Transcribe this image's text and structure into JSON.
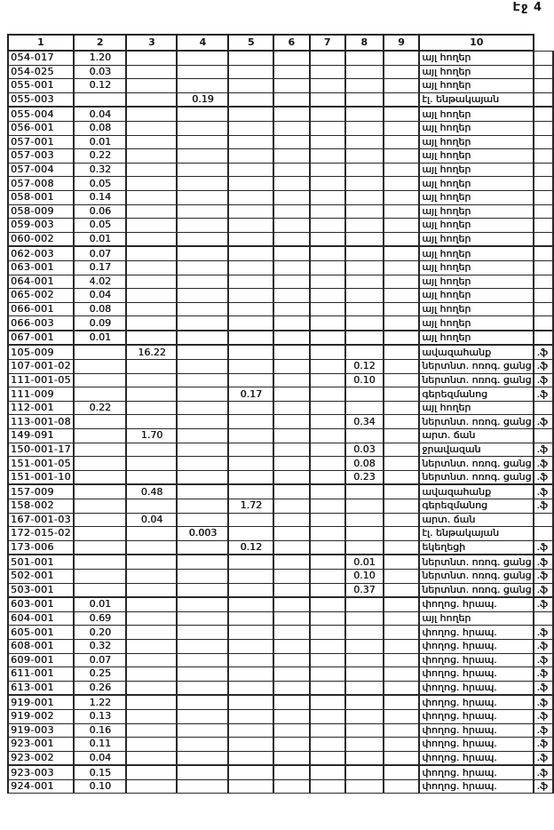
{
  "page": {
    "label": "Էջ 4"
  },
  "table": {
    "headers": [
      "1",
      "2",
      "3",
      "4",
      "5",
      "6",
      "7",
      "8",
      "9",
      "10"
    ],
    "edge_mark": ".ֆ",
    "rows": [
      {
        "code": "054-017",
        "values": {
          "2": "1.20"
        },
        "category": "այլ հողեր",
        "mark": false,
        "thick": false
      },
      {
        "code": "054-025",
        "values": {
          "2": "0.03"
        },
        "category": "այլ հողեր",
        "mark": false,
        "thick": false
      },
      {
        "code": "055-001",
        "values": {
          "2": "0.12"
        },
        "category": "այլ հողեր",
        "mark": false,
        "thick": false
      },
      {
        "code": "055-003",
        "values": {
          "4": "0.19"
        },
        "category": "էլ. ենթակայան",
        "mark": false,
        "thick": false
      },
      {
        "code": "055-004",
        "values": {
          "2": "0.04"
        },
        "category": "այլ հողեր",
        "mark": false,
        "thick": true
      },
      {
        "code": "056-001",
        "values": {
          "2": "0.08"
        },
        "category": "այլ հողեր",
        "mark": false,
        "thick": false
      },
      {
        "code": "057-001",
        "values": {
          "2": "0.01"
        },
        "category": "այլ հողեր",
        "mark": false,
        "thick": false
      },
      {
        "code": "057-003",
        "values": {
          "2": "0.22"
        },
        "category": "այլ հողեր",
        "mark": false,
        "thick": false
      },
      {
        "code": "057-004",
        "values": {
          "2": "0.32"
        },
        "category": "այլ հողեր",
        "mark": false,
        "thick": false
      },
      {
        "code": "057-008",
        "values": {
          "2": "0.05"
        },
        "category": "այլ հողեր",
        "mark": false,
        "thick": false
      },
      {
        "code": "058-001",
        "values": {
          "2": "0.14"
        },
        "category": "այլ հողեր",
        "mark": false,
        "thick": false
      },
      {
        "code": "058-009",
        "values": {
          "2": "0.06"
        },
        "category": "այլ հողեր",
        "mark": false,
        "thick": false
      },
      {
        "code": "059-003",
        "values": {
          "2": "0.05"
        },
        "category": "այլ հողեր",
        "mark": false,
        "thick": false
      },
      {
        "code": "060-002",
        "values": {
          "2": "0.01"
        },
        "category": "այլ հողեր",
        "mark": false,
        "thick": false
      },
      {
        "code": "062-003",
        "values": {
          "2": "0.07"
        },
        "category": "այլ հողեր",
        "mark": false,
        "thick": true
      },
      {
        "code": "063-001",
        "values": {
          "2": "0.17"
        },
        "category": "այլ հողեր",
        "mark": false,
        "thick": false
      },
      {
        "code": "064-001",
        "values": {
          "2": "4.02"
        },
        "category": "այլ հողեր",
        "mark": false,
        "thick": false
      },
      {
        "code": "065-002",
        "values": {
          "2": "0.04"
        },
        "category": "այլ հողեր",
        "mark": false,
        "thick": false
      },
      {
        "code": "066-001",
        "values": {
          "2": "0.08"
        },
        "category": "այլ հողեր",
        "mark": false,
        "thick": false
      },
      {
        "code": "066-003",
        "values": {
          "2": "0.09"
        },
        "category": "այլ հողեր",
        "mark": false,
        "thick": false
      },
      {
        "code": "067-001",
        "values": {
          "2": "0.01"
        },
        "category": "այլ հողեր",
        "mark": false,
        "thick": true
      },
      {
        "code": "105-009",
        "values": {
          "3": "16.22"
        },
        "category": "ավազահանք",
        "mark": true,
        "thick": true
      },
      {
        "code": "107-001-02",
        "values": {
          "8": "0.12"
        },
        "category": "ներտնտ. ոռոգ. ցանց",
        "mark": true,
        "thick": false
      },
      {
        "code": "111-001-05",
        "values": {
          "8": "0.10"
        },
        "category": "ներտնտ. ոռոգ. ցանց",
        "mark": true,
        "thick": false
      },
      {
        "code": "111-009",
        "values": {
          "5": "0.17"
        },
        "category": "գերեզմանոց",
        "mark": true,
        "thick": false
      },
      {
        "code": "112-001",
        "values": {
          "2": "0.22"
        },
        "category": "այլ հողեր",
        "mark": false,
        "thick": false
      },
      {
        "code": "113-001-08",
        "values": {
          "8": "0.34"
        },
        "category": "ներտնտ. ոռոգ. ցանց",
        "mark": true,
        "thick": false
      },
      {
        "code": "149-091",
        "values": {
          "3": "1.70"
        },
        "category": "արտ. ճան",
        "mark": false,
        "thick": false
      },
      {
        "code": "150-001-17",
        "values": {
          "8": "0.03"
        },
        "category": "ջրավազան",
        "mark": true,
        "thick": false
      },
      {
        "code": "151-001-05",
        "values": {
          "8": "0.08"
        },
        "category": "ներտնտ. ոռոգ. ցանց",
        "mark": true,
        "thick": false
      },
      {
        "code": "151-001-10",
        "values": {
          "8": "0.23"
        },
        "category": "ներտնտ. ոռոգ. ցանց",
        "mark": true,
        "thick": false
      },
      {
        "code": "157-009",
        "values": {
          "3": "0.48"
        },
        "category": "ավազահանք",
        "mark": true,
        "thick": true
      },
      {
        "code": "158-002",
        "values": {
          "5": "1.72"
        },
        "category": "գերեզմանոց",
        "mark": true,
        "thick": false
      },
      {
        "code": "167-001-03",
        "values": {
          "3": "0.04"
        },
        "category": "արտ. ճան",
        "mark": false,
        "thick": false
      },
      {
        "code": "172-015-02",
        "values": {
          "4": "0.003"
        },
        "category": "էլ. ենթակայան",
        "mark": false,
        "thick": false
      },
      {
        "code": "173-006",
        "values": {
          "5": "0.12"
        },
        "category": "եկեղեցի",
        "mark": true,
        "thick": false
      },
      {
        "code": "501-001",
        "values": {
          "8": "0.01"
        },
        "category": "ներտնտ. ոռոգ. ցանց",
        "mark": true,
        "thick": true
      },
      {
        "code": "502-001",
        "values": {
          "8": "0.10"
        },
        "category": "ներտնտ. ոռոգ. ցանց",
        "mark": true,
        "thick": false
      },
      {
        "code": "503-001",
        "values": {
          "8": "0.37"
        },
        "category": "ներտնտ. ոռոգ. ցանց",
        "mark": true,
        "thick": false
      },
      {
        "code": "603-001",
        "values": {
          "2": "0.01"
        },
        "category": "փողոց. հրապ.",
        "mark": true,
        "thick": true
      },
      {
        "code": "604-001",
        "values": {
          "2": "0.69"
        },
        "category": "այլ հողեր",
        "mark": false,
        "thick": false
      },
      {
        "code": "605-001",
        "values": {
          "2": "0.20"
        },
        "category": "փողոց. հրապ.",
        "mark": true,
        "thick": false
      },
      {
        "code": "608-001",
        "values": {
          "2": "0.32"
        },
        "category": "փողոց. հրապ.",
        "mark": true,
        "thick": false
      },
      {
        "code": "609-001",
        "values": {
          "2": "0.07"
        },
        "category": "փողոց. հրապ.",
        "mark": true,
        "thick": false
      },
      {
        "code": "611-001",
        "values": {
          "2": "0.25"
        },
        "category": "փողոց. հրապ.",
        "mark": true,
        "thick": false
      },
      {
        "code": "613-001",
        "values": {
          "2": "0.26"
        },
        "category": "փողոց. հրապ.",
        "mark": true,
        "thick": false
      },
      {
        "code": "919-001",
        "values": {
          "2": "1.22"
        },
        "category": "փողոց. հրապ.",
        "mark": true,
        "thick": true
      },
      {
        "code": "919-002",
        "values": {
          "2": "0.13"
        },
        "category": "փողոց. հրապ.",
        "mark": true,
        "thick": false
      },
      {
        "code": "919-003",
        "values": {
          "2": "0.16"
        },
        "category": "փողոց. հրապ.",
        "mark": true,
        "thick": false
      },
      {
        "code": "923-001",
        "values": {
          "2": "0.11"
        },
        "category": "փողոց. հրապ.",
        "mark": true,
        "thick": false
      },
      {
        "code": "923-002",
        "values": {
          "2": "0.04"
        },
        "category": "փողոց. հրապ.",
        "mark": true,
        "thick": false
      },
      {
        "code": "923-003",
        "values": {
          "2": "0.15"
        },
        "category": "փողոց. հրապ.",
        "mark": true,
        "thick": true
      },
      {
        "code": "924-001",
        "values": {
          "2": "0.10"
        },
        "category": "փողոց. հրապ.",
        "mark": true,
        "thick": false
      }
    ]
  }
}
